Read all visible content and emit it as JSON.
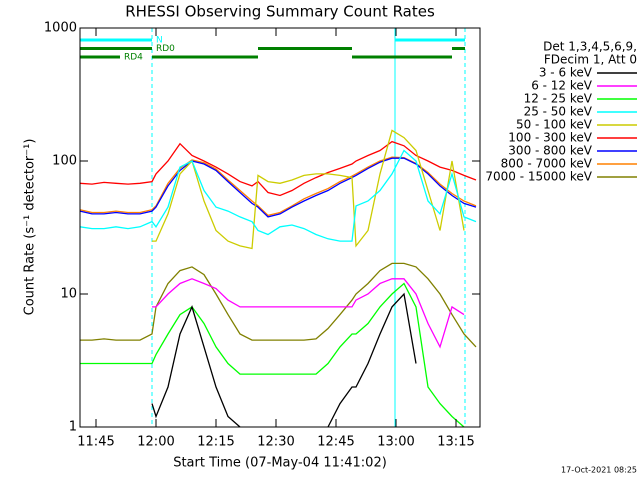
{
  "chart_data": {
    "type": "line",
    "title": "RHESSI Observing Summary Count Rates",
    "xlabel": "Start Time (07-May-04 11:41:02)",
    "ylabel": "Count Rate (s⁻¹ detector⁻¹)",
    "legend_header": [
      "Det 1,3,4,5,6,9,",
      "FDecim 1, Att 0"
    ],
    "footer": "17-Oct-2021 08:25",
    "log_y": true,
    "xlim": [
      701,
      801
    ],
    "ylim": [
      1,
      1000
    ],
    "xticks": [
      {
        "value": 705,
        "label": "11:45"
      },
      {
        "value": 720,
        "label": "12:00"
      },
      {
        "value": 735,
        "label": "12:15"
      },
      {
        "value": 750,
        "label": "12:30"
      },
      {
        "value": 765,
        "label": "12:45"
      },
      {
        "value": 780,
        "label": "13:00"
      },
      {
        "value": 795,
        "label": "13:15"
      }
    ],
    "yticks": [
      1,
      10,
      100,
      1000
    ],
    "annotations": [
      {
        "label": "N",
        "color": "#00ffff",
        "segments": [
          [
            701,
            719
          ],
          [
            779.75,
            797.25
          ]
        ]
      },
      {
        "label": "RD0",
        "color": "#008000",
        "segments": [
          [
            701,
            719
          ],
          [
            745.5,
            769
          ],
          [
            794,
            797.25
          ]
        ]
      },
      {
        "label": "RD4",
        "color": "#008000",
        "segments": [
          [
            701,
            711
          ],
          [
            719,
            745.5
          ],
          [
            769,
            794
          ]
        ]
      }
    ],
    "vlines": [
      {
        "x": 701,
        "dashed": false
      },
      {
        "x": 719,
        "dashed": true
      },
      {
        "x": 779.75,
        "dashed": false
      },
      {
        "x": 797.25,
        "dashed": true
      }
    ],
    "vline_color": "#00ffff",
    "x": [
      701,
      704,
      707,
      710,
      713,
      716,
      719,
      720,
      723,
      726,
      729,
      732,
      735,
      738,
      741,
      744,
      745.5,
      748,
      751,
      754,
      757,
      760,
      763,
      766,
      769,
      770,
      773,
      776,
      779,
      782,
      785,
      788,
      791,
      794,
      797,
      800
    ],
    "series": [
      {
        "name": "3 - 6 keV",
        "color": "#000000",
        "values": [
          null,
          null,
          null,
          null,
          null,
          null,
          1.5,
          1.2,
          2,
          5,
          8,
          4,
          2,
          1.2,
          1,
          null,
          null,
          null,
          null,
          null,
          null,
          null,
          1,
          1.5,
          2,
          2,
          3,
          5,
          8,
          10,
          3,
          null,
          null,
          null,
          null,
          null
        ]
      },
      {
        "name": "6 - 12 keV",
        "color": "#ff00ff",
        "values": [
          null,
          null,
          null,
          null,
          null,
          null,
          8,
          8,
          10,
          12,
          13,
          12,
          11,
          9,
          8,
          8,
          8,
          8,
          8,
          8,
          8,
          8,
          8,
          8,
          8,
          9,
          10,
          12,
          13,
          13,
          10,
          6,
          4,
          8,
          7,
          null
        ]
      },
      {
        "name": "12 - 25 keV",
        "color": "#00ff00",
        "values": [
          3,
          3,
          3,
          3,
          3,
          3,
          3,
          3.5,
          5,
          7,
          8,
          6,
          4,
          3,
          2.5,
          2.5,
          2.5,
          2.5,
          2.5,
          2.5,
          2.5,
          2.5,
          3,
          4,
          5,
          5,
          6,
          8,
          10,
          12,
          8,
          2,
          1.5,
          1.2,
          1,
          null
        ]
      },
      {
        "name": "25 - 50 keV",
        "color": "#00ffff",
        "values": [
          32,
          31,
          31,
          32,
          31,
          32,
          35,
          32,
          45,
          90,
          100,
          60,
          45,
          42,
          38,
          35,
          30,
          28,
          32,
          33,
          31,
          28,
          26,
          25,
          25,
          46,
          50,
          60,
          80,
          120,
          100,
          50,
          40,
          80,
          38,
          35
        ]
      },
      {
        "name": "50 - 100 keV",
        "color": "#cccc00",
        "values": [
          null,
          null,
          null,
          null,
          null,
          null,
          25,
          25,
          40,
          80,
          100,
          50,
          30,
          25,
          23,
          22,
          78,
          70,
          68,
          72,
          78,
          80,
          80,
          78,
          75,
          23,
          30,
          80,
          170,
          150,
          120,
          60,
          30,
          100,
          30,
          null
        ]
      },
      {
        "name": "100 - 300 keV",
        "color": "#ff0000",
        "values": [
          68,
          67,
          69,
          68,
          67,
          68,
          70,
          80,
          100,
          135,
          110,
          100,
          90,
          80,
          70,
          65,
          70,
          58,
          55,
          60,
          68,
          75,
          82,
          88,
          95,
          100,
          110,
          120,
          140,
          130,
          110,
          100,
          90,
          85,
          78,
          72
        ]
      },
      {
        "name": "300 - 800 keV",
        "color": "#0000ff",
        "values": [
          42,
          40,
          40,
          41,
          40,
          40,
          42,
          45,
          65,
          85,
          100,
          95,
          85,
          70,
          58,
          48,
          45,
          38,
          40,
          45,
          50,
          55,
          60,
          68,
          75,
          78,
          88,
          98,
          105,
          105,
          95,
          80,
          65,
          55,
          48,
          45
        ]
      },
      {
        "name": "800 - 7000 keV",
        "color": "#ff8000",
        "values": [
          43,
          41,
          41,
          42,
          41,
          41,
          43,
          46,
          68,
          88,
          102,
          97,
          87,
          72,
          60,
          50,
          46,
          39,
          41,
          46,
          52,
          57,
          62,
          70,
          77,
          80,
          90,
          100,
          107,
          106,
          96,
          82,
          67,
          57,
          50,
          46
        ]
      },
      {
        "name": "7000 - 15000 keV",
        "color": "#808000",
        "values": [
          4.5,
          4.5,
          4.6,
          4.5,
          4.5,
          4.5,
          5,
          8,
          12,
          15,
          16,
          14,
          10,
          7,
          5,
          4.5,
          4.5,
          4.5,
          4.5,
          4.5,
          4.5,
          4.6,
          5.5,
          7,
          9,
          10,
          12,
          15,
          17,
          17,
          16,
          13,
          10,
          7,
          5,
          4
        ]
      }
    ]
  }
}
